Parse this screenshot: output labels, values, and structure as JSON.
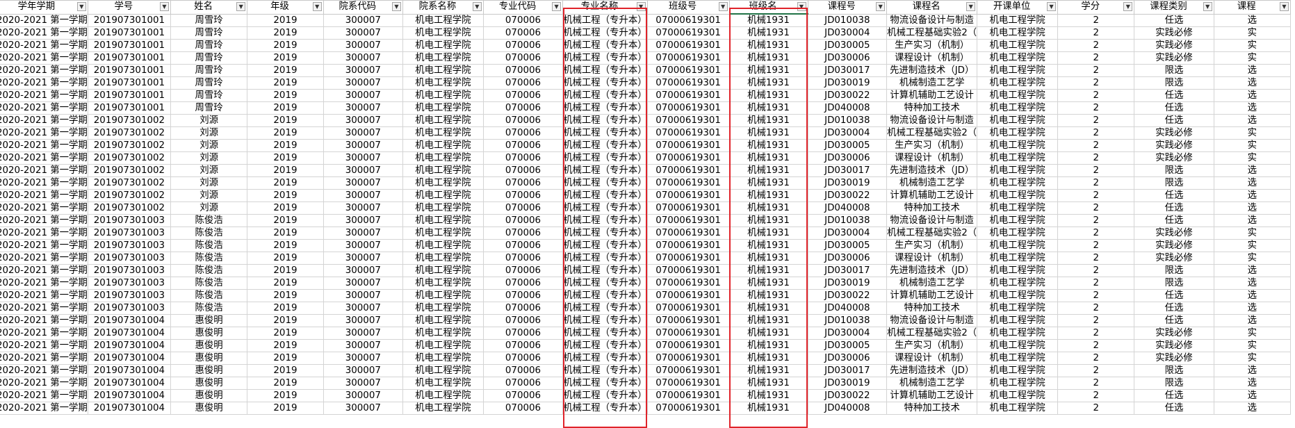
{
  "sheet": {
    "headers": [
      "学年学期",
      "学号",
      "姓名",
      "年级",
      "院系代码",
      "院系名称",
      "专业代码",
      "专业名称",
      "班级号",
      "班级名",
      "课程号",
      "课程名",
      "开课单位",
      "学分",
      "课程类别",
      "课程"
    ],
    "filter_glyph": "▼",
    "active_filter_glyph": "▼",
    "filter_active_col": 9,
    "rows": [
      [
        "2020-2021 第一学期",
        "201907301001",
        "周雪玲",
        "2019",
        "300007",
        "机电工程学院",
        "070006",
        "机械工程（专升本）",
        "07000619301",
        "机械1931",
        "JD010038",
        "物流设备设计与制造",
        "机电工程学院",
        "2",
        "任选",
        "选"
      ],
      [
        "2020-2021 第一学期",
        "201907301001",
        "周雪玲",
        "2019",
        "300007",
        "机电工程学院",
        "070006",
        "机械工程（专升本）",
        "07000619301",
        "机械1931",
        "JD030004",
        "机械工程基础实验2（",
        "机电工程学院",
        "2",
        "实践必修",
        "实"
      ],
      [
        "2020-2021 第一学期",
        "201907301001",
        "周雪玲",
        "2019",
        "300007",
        "机电工程学院",
        "070006",
        "机械工程（专升本）",
        "07000619301",
        "机械1931",
        "JD030005",
        "生产实习（机制）",
        "机电工程学院",
        "2",
        "实践必修",
        "实"
      ],
      [
        "2020-2021 第一学期",
        "201907301001",
        "周雪玲",
        "2019",
        "300007",
        "机电工程学院",
        "070006",
        "机械工程（专升本）",
        "07000619301",
        "机械1931",
        "JD030006",
        "课程设计（机制）",
        "机电工程学院",
        "2",
        "实践必修",
        "实"
      ],
      [
        "2020-2021 第一学期",
        "201907301001",
        "周雪玲",
        "2019",
        "300007",
        "机电工程学院",
        "070006",
        "机械工程（专升本）",
        "07000619301",
        "机械1931",
        "JD030017",
        "先进制造技术（JD）",
        "机电工程学院",
        "2",
        "限选",
        "选"
      ],
      [
        "2020-2021 第一学期",
        "201907301001",
        "周雪玲",
        "2019",
        "300007",
        "机电工程学院",
        "070006",
        "机械工程（专升本）",
        "07000619301",
        "机械1931",
        "JD030019",
        "机械制造工艺学",
        "机电工程学院",
        "2",
        "限选",
        "选"
      ],
      [
        "2020-2021 第一学期",
        "201907301001",
        "周雪玲",
        "2019",
        "300007",
        "机电工程学院",
        "070006",
        "机械工程（专升本）",
        "07000619301",
        "机械1931",
        "JD030022",
        "计算机辅助工艺设计",
        "机电工程学院",
        "2",
        "任选",
        "选"
      ],
      [
        "2020-2021 第一学期",
        "201907301001",
        "周雪玲",
        "2019",
        "300007",
        "机电工程学院",
        "070006",
        "机械工程（专升本）",
        "07000619301",
        "机械1931",
        "JD040008",
        "特种加工技术",
        "机电工程学院",
        "2",
        "任选",
        "选"
      ],
      [
        "2020-2021 第一学期",
        "201907301002",
        "刘源",
        "2019",
        "300007",
        "机电工程学院",
        "070006",
        "机械工程（专升本）",
        "07000619301",
        "机械1931",
        "JD010038",
        "物流设备设计与制造",
        "机电工程学院",
        "2",
        "任选",
        "选"
      ],
      [
        "2020-2021 第一学期",
        "201907301002",
        "刘源",
        "2019",
        "300007",
        "机电工程学院",
        "070006",
        "机械工程（专升本）",
        "07000619301",
        "机械1931",
        "JD030004",
        "机械工程基础实验2（",
        "机电工程学院",
        "2",
        "实践必修",
        "实"
      ],
      [
        "2020-2021 第一学期",
        "201907301002",
        "刘源",
        "2019",
        "300007",
        "机电工程学院",
        "070006",
        "机械工程（专升本）",
        "07000619301",
        "机械1931",
        "JD030005",
        "生产实习（机制）",
        "机电工程学院",
        "2",
        "实践必修",
        "实"
      ],
      [
        "2020-2021 第一学期",
        "201907301002",
        "刘源",
        "2019",
        "300007",
        "机电工程学院",
        "070006",
        "机械工程（专升本）",
        "07000619301",
        "机械1931",
        "JD030006",
        "课程设计（机制）",
        "机电工程学院",
        "2",
        "实践必修",
        "实"
      ],
      [
        "2020-2021 第一学期",
        "201907301002",
        "刘源",
        "2019",
        "300007",
        "机电工程学院",
        "070006",
        "机械工程（专升本）",
        "07000619301",
        "机械1931",
        "JD030017",
        "先进制造技术（JD）",
        "机电工程学院",
        "2",
        "限选",
        "选"
      ],
      [
        "2020-2021 第一学期",
        "201907301002",
        "刘源",
        "2019",
        "300007",
        "机电工程学院",
        "070006",
        "机械工程（专升本）",
        "07000619301",
        "机械1931",
        "JD030019",
        "机械制造工艺学",
        "机电工程学院",
        "2",
        "限选",
        "选"
      ],
      [
        "2020-2021 第一学期",
        "201907301002",
        "刘源",
        "2019",
        "300007",
        "机电工程学院",
        "070006",
        "机械工程（专升本）",
        "07000619301",
        "机械1931",
        "JD030022",
        "计算机辅助工艺设计",
        "机电工程学院",
        "2",
        "任选",
        "选"
      ],
      [
        "2020-2021 第一学期",
        "201907301002",
        "刘源",
        "2019",
        "300007",
        "机电工程学院",
        "070006",
        "机械工程（专升本）",
        "07000619301",
        "机械1931",
        "JD040008",
        "特种加工技术",
        "机电工程学院",
        "2",
        "任选",
        "选"
      ],
      [
        "2020-2021 第一学期",
        "201907301003",
        "陈俊浩",
        "2019",
        "300007",
        "机电工程学院",
        "070006",
        "机械工程（专升本）",
        "07000619301",
        "机械1931",
        "JD010038",
        "物流设备设计与制造",
        "机电工程学院",
        "2",
        "任选",
        "选"
      ],
      [
        "2020-2021 第一学期",
        "201907301003",
        "陈俊浩",
        "2019",
        "300007",
        "机电工程学院",
        "070006",
        "机械工程（专升本）",
        "07000619301",
        "机械1931",
        "JD030004",
        "机械工程基础实验2（",
        "机电工程学院",
        "2",
        "实践必修",
        "实"
      ],
      [
        "2020-2021 第一学期",
        "201907301003",
        "陈俊浩",
        "2019",
        "300007",
        "机电工程学院",
        "070006",
        "机械工程（专升本）",
        "07000619301",
        "机械1931",
        "JD030005",
        "生产实习（机制）",
        "机电工程学院",
        "2",
        "实践必修",
        "实"
      ],
      [
        "2020-2021 第一学期",
        "201907301003",
        "陈俊浩",
        "2019",
        "300007",
        "机电工程学院",
        "070006",
        "机械工程（专升本）",
        "07000619301",
        "机械1931",
        "JD030006",
        "课程设计（机制）",
        "机电工程学院",
        "2",
        "实践必修",
        "实"
      ],
      [
        "2020-2021 第一学期",
        "201907301003",
        "陈俊浩",
        "2019",
        "300007",
        "机电工程学院",
        "070006",
        "机械工程（专升本）",
        "07000619301",
        "机械1931",
        "JD030017",
        "先进制造技术（JD）",
        "机电工程学院",
        "2",
        "限选",
        "选"
      ],
      [
        "2020-2021 第一学期",
        "201907301003",
        "陈俊浩",
        "2019",
        "300007",
        "机电工程学院",
        "070006",
        "机械工程（专升本）",
        "07000619301",
        "机械1931",
        "JD030019",
        "机械制造工艺学",
        "机电工程学院",
        "2",
        "限选",
        "选"
      ],
      [
        "2020-2021 第一学期",
        "201907301003",
        "陈俊浩",
        "2019",
        "300007",
        "机电工程学院",
        "070006",
        "机械工程（专升本）",
        "07000619301",
        "机械1931",
        "JD030022",
        "计算机辅助工艺设计",
        "机电工程学院",
        "2",
        "任选",
        "选"
      ],
      [
        "2020-2021 第一学期",
        "201907301003",
        "陈俊浩",
        "2019",
        "300007",
        "机电工程学院",
        "070006",
        "机械工程（专升本）",
        "07000619301",
        "机械1931",
        "JD040008",
        "特种加工技术",
        "机电工程学院",
        "2",
        "任选",
        "选"
      ],
      [
        "2020-2021 第一学期",
        "201907301004",
        "惠俊明",
        "2019",
        "300007",
        "机电工程学院",
        "070006",
        "机械工程（专升本）",
        "07000619301",
        "机械1931",
        "JD010038",
        "物流设备设计与制造",
        "机电工程学院",
        "2",
        "任选",
        "选"
      ],
      [
        "2020-2021 第一学期",
        "201907301004",
        "惠俊明",
        "2019",
        "300007",
        "机电工程学院",
        "070006",
        "机械工程（专升本）",
        "07000619301",
        "机械1931",
        "JD030004",
        "机械工程基础实验2（",
        "机电工程学院",
        "2",
        "实践必修",
        "实"
      ],
      [
        "2020-2021 第一学期",
        "201907301004",
        "惠俊明",
        "2019",
        "300007",
        "机电工程学院",
        "070006",
        "机械工程（专升本）",
        "07000619301",
        "机械1931",
        "JD030005",
        "生产实习（机制）",
        "机电工程学院",
        "2",
        "实践必修",
        "实"
      ],
      [
        "2020-2021 第一学期",
        "201907301004",
        "惠俊明",
        "2019",
        "300007",
        "机电工程学院",
        "070006",
        "机械工程（专升本）",
        "07000619301",
        "机械1931",
        "JD030006",
        "课程设计（机制）",
        "机电工程学院",
        "2",
        "实践必修",
        "实"
      ],
      [
        "2020-2021 第一学期",
        "201907301004",
        "惠俊明",
        "2019",
        "300007",
        "机电工程学院",
        "070006",
        "机械工程（专升本）",
        "07000619301",
        "机械1931",
        "JD030017",
        "先进制造技术（JD）",
        "机电工程学院",
        "2",
        "限选",
        "选"
      ],
      [
        "2020-2021 第一学期",
        "201907301004",
        "惠俊明",
        "2019",
        "300007",
        "机电工程学院",
        "070006",
        "机械工程（专升本）",
        "07000619301",
        "机械1931",
        "JD030019",
        "机械制造工艺学",
        "机电工程学院",
        "2",
        "限选",
        "选"
      ],
      [
        "2020-2021 第一学期",
        "201907301004",
        "惠俊明",
        "2019",
        "300007",
        "机电工程学院",
        "070006",
        "机械工程（专升本）",
        "07000619301",
        "机械1931",
        "JD030022",
        "计算机辅助工艺设计",
        "机电工程学院",
        "2",
        "任选",
        "选"
      ],
      [
        "2020-2021 第一学期",
        "201907301004",
        "惠俊明",
        "2019",
        "300007",
        "机电工程学院",
        "070006",
        "机械工程（专升本）",
        "07000619301",
        "机械1931",
        "JD040008",
        "特种加工技术",
        "机电工程学院",
        "2",
        "任选",
        "选"
      ]
    ]
  },
  "colors": {
    "highlight_border": "#e0232a",
    "selected_header_underline": "#217346",
    "gridline": "#d4d4d4"
  }
}
